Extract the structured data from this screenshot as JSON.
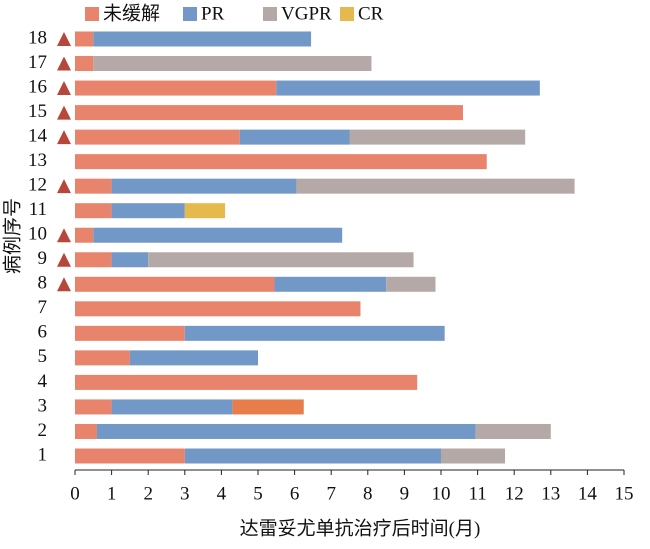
{
  "chart_data": {
    "type": "swimmer",
    "x_label": "达雷妥尤单抗治疗后时间(月)",
    "y_label": "病例序号",
    "series": [
      {
        "name": "未缓解",
        "color": "#e8846c"
      },
      {
        "name": "PR",
        "color": "#7198c6"
      },
      {
        "name": "VGPR",
        "color": "#b5a9a7"
      },
      {
        "name": "CR",
        "color": "#e6b94c"
      }
    ],
    "categories": [
      "1",
      "2",
      "3",
      "4",
      "5",
      "6",
      "7",
      "8",
      "9",
      "10",
      "11",
      "12",
      "13",
      "14",
      "15",
      "16",
      "17",
      "18"
    ],
    "bars": [
      [
        {
          "series": 0,
          "value": 3.0
        },
        {
          "series": 1,
          "value": 7.0
        },
        {
          "series": 2,
          "value": 1.75
        }
      ],
      [
        {
          "series": 0,
          "value": 0.6
        },
        {
          "series": 1,
          "value": 10.35
        },
        {
          "series": 2,
          "value": 2.05
        }
      ],
      [
        {
          "series": 0,
          "value": 1.0
        },
        {
          "series": 1,
          "value": 3.3
        },
        {
          "color": "#e87d4c",
          "value": 1.95
        }
      ],
      [
        {
          "series": 0,
          "value": 9.35
        }
      ],
      [
        {
          "series": 0,
          "value": 1.5
        },
        {
          "series": 1,
          "value": 3.5
        }
      ],
      [
        {
          "series": 0,
          "value": 3.0
        },
        {
          "series": 1,
          "value": 7.1
        }
      ],
      [
        {
          "series": 0,
          "value": 7.8
        }
      ],
      [
        {
          "series": 0,
          "value": 5.45
        },
        {
          "series": 1,
          "value": 3.05
        },
        {
          "series": 2,
          "value": 1.35
        }
      ],
      [
        {
          "series": 0,
          "value": 1.0
        },
        {
          "series": 1,
          "value": 1.0
        },
        {
          "series": 2,
          "value": 7.25
        }
      ],
      [
        {
          "series": 0,
          "value": 0.5
        },
        {
          "series": 1,
          "value": 6.8
        }
      ],
      [
        {
          "series": 0,
          "value": 1.0
        },
        {
          "series": 1,
          "value": 2.0
        },
        {
          "series": 3,
          "value": 1.1
        }
      ],
      [
        {
          "series": 0,
          "value": 1.0
        },
        {
          "series": 1,
          "value": 5.05
        },
        {
          "series": 2,
          "value": 7.6
        }
      ],
      [
        {
          "series": 0,
          "value": 11.25
        }
      ],
      [
        {
          "series": 0,
          "value": 4.5
        },
        {
          "series": 1,
          "value": 3.0
        },
        {
          "series": 2,
          "value": 4.8
        }
      ],
      [
        {
          "series": 0,
          "value": 10.6
        }
      ],
      [
        {
          "series": 0,
          "value": 5.5
        },
        {
          "series": 1,
          "value": 7.2
        }
      ],
      [
        {
          "series": 0,
          "value": 0.5
        },
        {
          "series": 2,
          "value": 7.6
        }
      ],
      [
        {
          "series": 0,
          "value": 0.5
        },
        {
          "series": 1,
          "value": 5.95
        }
      ]
    ],
    "triangle": [
      false,
      false,
      false,
      false,
      false,
      false,
      false,
      true,
      true,
      true,
      false,
      true,
      false,
      true,
      true,
      true,
      true,
      true
    ],
    "triangle_color": "#b8473b",
    "xlim": [
      0,
      15
    ],
    "xticks": [
      0,
      1,
      2,
      3,
      4,
      5,
      6,
      7,
      8,
      9,
      10,
      11,
      12,
      13,
      14,
      15
    ]
  }
}
